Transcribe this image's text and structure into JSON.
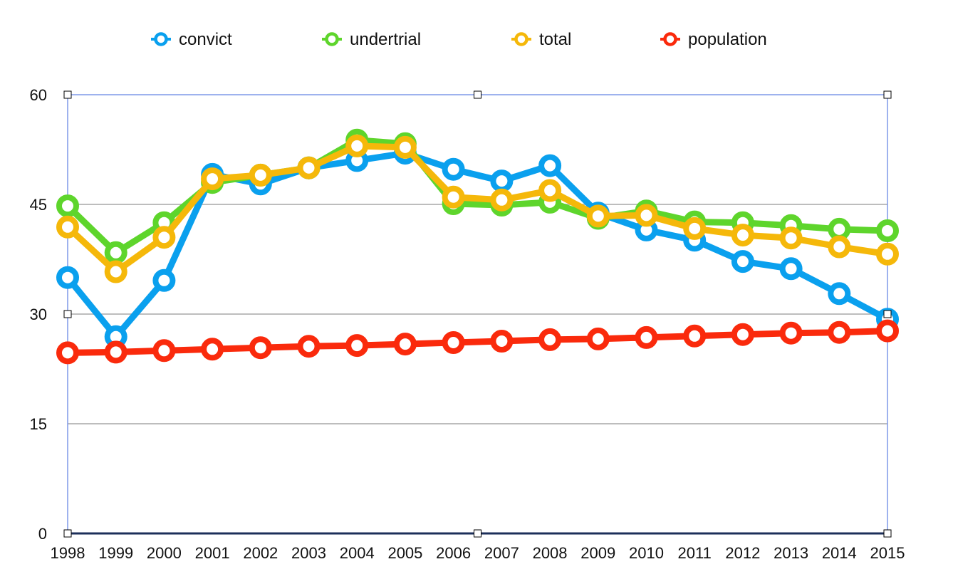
{
  "chart_data": {
    "type": "line",
    "title": "",
    "xlabel": "",
    "ylabel": "",
    "x": [
      "1998",
      "1999",
      "2000",
      "2001",
      "2002",
      "2003",
      "2004",
      "2005",
      "2006",
      "2007",
      "2008",
      "2009",
      "2010",
      "2011",
      "2012",
      "2013",
      "2014",
      "2015"
    ],
    "ylim": [
      0,
      60
    ],
    "yticks": [
      "0",
      "15",
      "30",
      "45",
      "60"
    ],
    "grid": true,
    "legend_position": "top",
    "series": [
      {
        "name": "convict",
        "color": "#0aa0ee",
        "values": [
          35.0,
          26.9,
          34.6,
          49.1,
          47.8,
          50.0,
          51.0,
          52.0,
          49.8,
          48.2,
          50.3,
          43.8,
          41.5,
          40.1,
          37.2,
          36.2,
          32.8,
          29.3
        ]
      },
      {
        "name": "undertrial",
        "color": "#5ed52c",
        "values": [
          44.8,
          38.4,
          42.5,
          48.0,
          49.0,
          50.0,
          53.8,
          53.3,
          45.1,
          44.9,
          45.3,
          43.1,
          44.1,
          42.6,
          42.5,
          42.1,
          41.6,
          41.4
        ]
      },
      {
        "name": "total",
        "color": "#f5b80a",
        "values": [
          41.9,
          35.8,
          40.5,
          48.5,
          49.0,
          50.0,
          53.0,
          52.8,
          46.0,
          45.6,
          46.9,
          43.4,
          43.5,
          41.7,
          40.8,
          40.4,
          39.2,
          38.2
        ]
      },
      {
        "name": "population",
        "color": "#fa2a0c",
        "values": [
          24.7,
          24.8,
          25.0,
          25.2,
          25.4,
          25.6,
          25.7,
          25.9,
          26.1,
          26.3,
          26.5,
          26.6,
          26.8,
          27.0,
          27.2,
          27.4,
          27.5,
          27.7
        ]
      }
    ]
  }
}
